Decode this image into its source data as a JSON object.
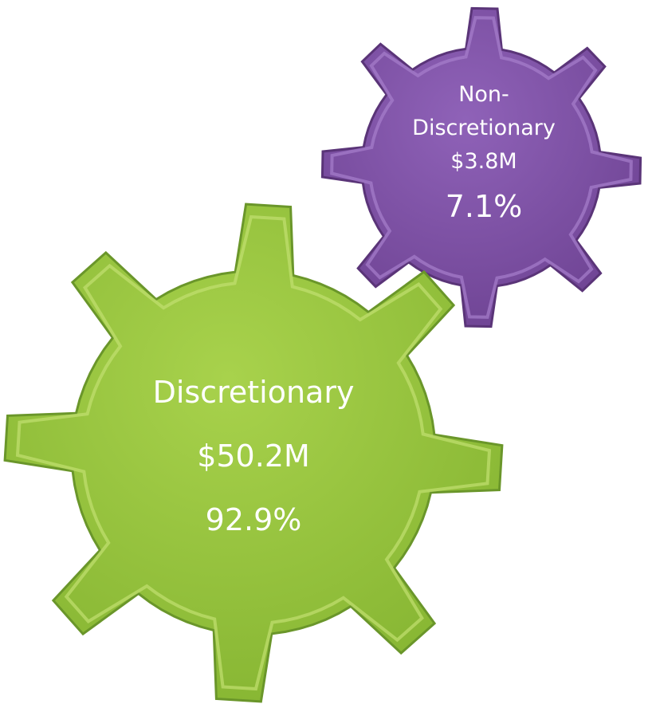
{
  "gears": [
    {
      "label": "Discretionary",
      "amount": "$50.2M",
      "share": "92.9%"
    },
    {
      "label": "Non-Discretionary",
      "amount": "$3.8M",
      "share": "7.1%"
    }
  ]
}
